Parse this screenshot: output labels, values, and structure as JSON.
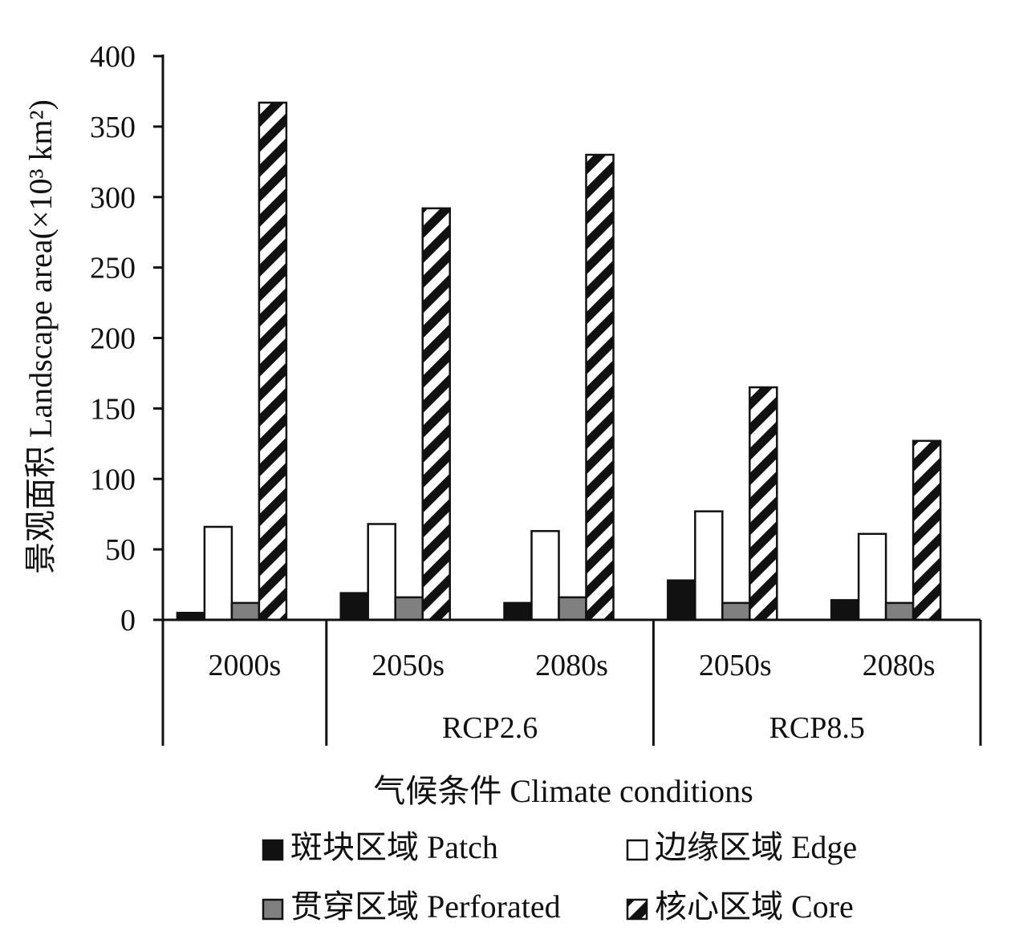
{
  "chart_data": {
    "type": "bar",
    "title": "",
    "ylabel": "景观面积 Landscape area(×10³ km²)",
    "xlabel": "气候条件 Climate conditions",
    "ylim": [
      0,
      400
    ],
    "yticks": [
      0,
      50,
      100,
      150,
      200,
      250,
      300,
      350,
      400
    ],
    "categories": [
      "2000s",
      "2050s",
      "2080s",
      "2050s",
      "2080s"
    ],
    "groups": [
      {
        "label": "",
        "categories": [
          0
        ]
      },
      {
        "label": "RCP2.6",
        "categories": [
          1,
          2
        ]
      },
      {
        "label": "RCP8.5",
        "categories": [
          3,
          4
        ]
      }
    ],
    "series": [
      {
        "name": "斑块区域 Patch",
        "fill": "#111111",
        "pattern": "solid",
        "values": [
          5,
          19,
          12,
          28,
          14
        ]
      },
      {
        "name": "边缘区域 Edge",
        "fill": "#ffffff",
        "pattern": "solid",
        "values": [
          66,
          68,
          63,
          77,
          61
        ]
      },
      {
        "name": "贯穿区域 Perforated",
        "fill": "#808080",
        "pattern": "solid",
        "values": [
          12,
          16,
          16,
          12,
          12
        ]
      },
      {
        "name": "核心区域 Core",
        "fill": "#ffffff",
        "pattern": "diagonal-stripes",
        "values": [
          367,
          292,
          330,
          165,
          127
        ]
      }
    ],
    "legend_position": "bottom",
    "grid": false
  }
}
